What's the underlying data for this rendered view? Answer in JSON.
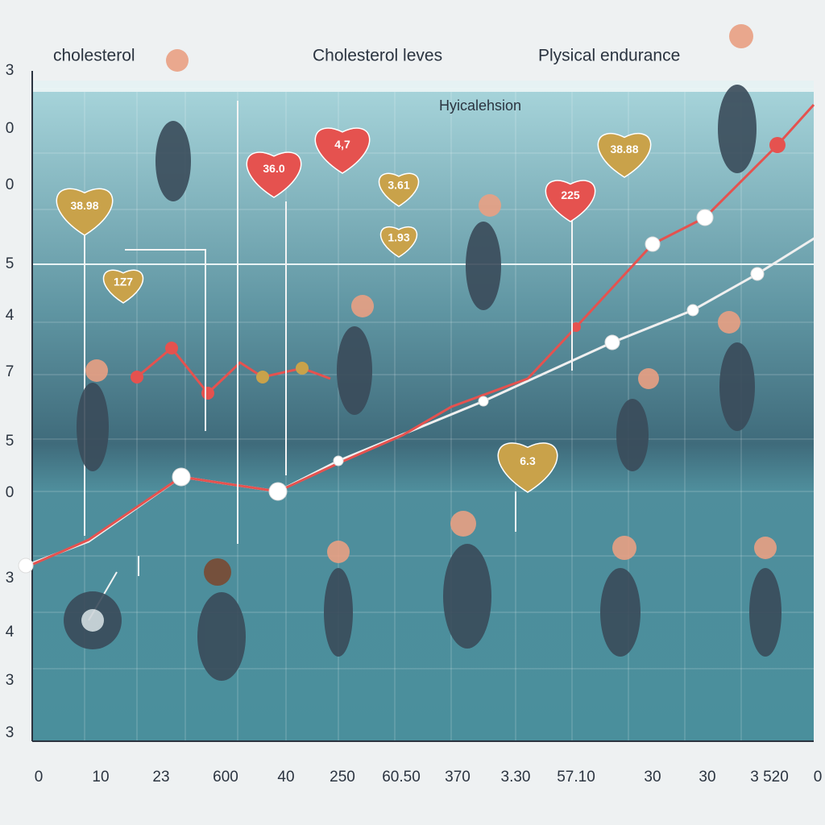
{
  "header": {
    "left": "cholesterol",
    "center": "Cholesterol leves",
    "right": "Plysical endurance",
    "subtitle": "Hyicalehsion"
  },
  "hearts": [
    "38.98",
    "1Z7",
    "36.0",
    "4,7",
    "3.61",
    "1.93",
    "225",
    "38.88",
    "6.3"
  ],
  "left_labels": [
    "3",
    "0",
    "0",
    "5",
    "4",
    "7",
    "5",
    "0",
    "3",
    "4",
    "3",
    "3"
  ],
  "bottom_labels": [
    "0",
    "10",
    "23",
    "600",
    "40",
    "250",
    "60.50",
    "370",
    "3.30",
    "57.10",
    "30",
    "30",
    "3 520",
    "0"
  ]
}
